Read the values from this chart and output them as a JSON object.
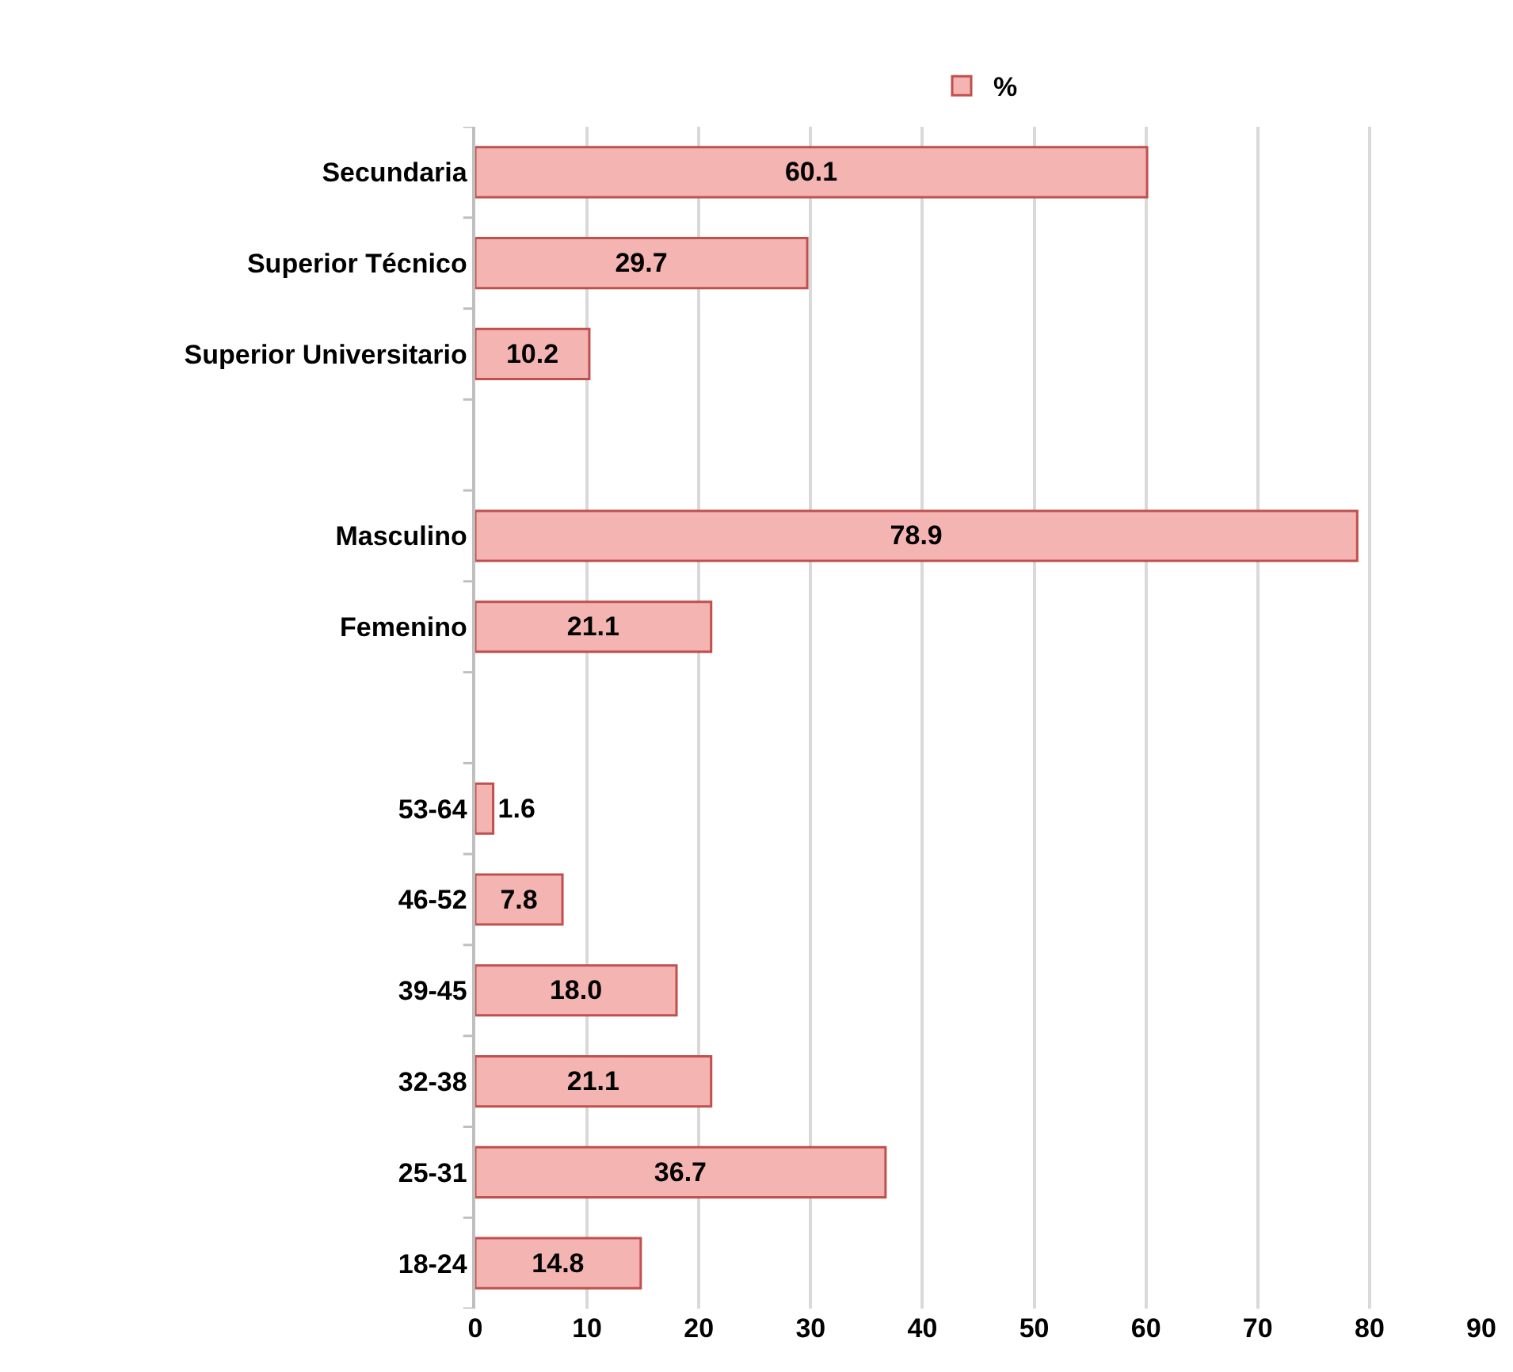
{
  "chart_data": {
    "type": "bar",
    "orientation": "horizontal",
    "categories": [
      "Secundaria",
      "Superior Técnico",
      "Superior Universitario",
      null,
      "Masculino",
      "Femenino",
      null,
      "53-64",
      "46-52",
      "39-45",
      "32-38",
      "25-31",
      "18-24"
    ],
    "series": [
      {
        "name": "%",
        "color": "#f4b4b2",
        "values": [
          60.1,
          29.7,
          10.2,
          null,
          78.9,
          21.1,
          null,
          1.6,
          7.8,
          18.0,
          21.1,
          36.7,
          14.8
        ]
      }
    ],
    "value_labels": [
      "60.1",
      "29.7",
      "10.2",
      null,
      "78.9",
      "21.1",
      null,
      "1.6",
      "7.8",
      "18.0",
      "21.1",
      "36.7",
      "14.8"
    ],
    "xlim": [
      0,
      90
    ],
    "xticks": [
      0,
      10,
      20,
      30,
      40,
      50,
      60,
      70,
      80,
      90
    ],
    "grid": "x",
    "legend": "top"
  }
}
